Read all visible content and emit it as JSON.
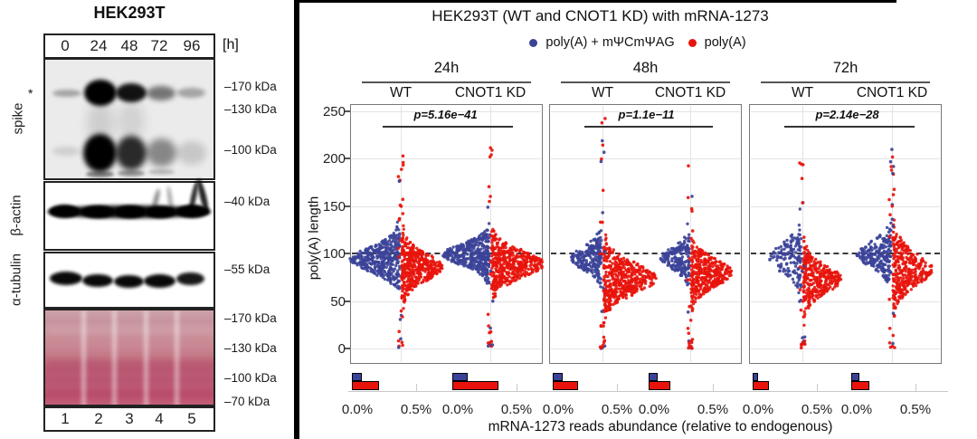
{
  "figure": {
    "left_blot": {
      "title": "HEK293T",
      "time_labels": [
        "0",
        "24",
        "48",
        "72",
        "96"
      ],
      "time_unit_label": "[h]",
      "asterisk": "*",
      "row_labels": [
        "spike",
        "β-actin",
        "α-tubulin"
      ],
      "marker_labels": {
        "spike": [
          "–170 kDa",
          "–130 kDa",
          "–100 kDa"
        ],
        "actin": [
          "–40 kDa"
        ],
        "tubulin": [
          "–55 kDa"
        ],
        "ponceau": [
          "–170 kDa",
          "–130 kDa",
          "–100 kDa",
          "–70 kDa"
        ]
      },
      "lane_numbers": [
        "1",
        "2",
        "3",
        "4",
        "5"
      ]
    },
    "chart": {
      "title": "HEK293T (WT and CNOT1 KD) with mRNA-1273",
      "legend": [
        {
          "label": "poly(A) + mΨCmΨAG",
          "color": "#3b4398"
        },
        {
          "label": "poly(A)",
          "color": "#e8140c"
        }
      ],
      "ylabel": "poly(A) length",
      "xlabel": "mRNA-1273 reads abundance (relative to endogenous)",
      "chart_data": {
        "type": "split-violin+bar",
        "y_axis": {
          "label": "poly(A) length",
          "ticks": [
            0,
            50,
            100,
            150,
            200,
            250
          ],
          "range": [
            0,
            250
          ],
          "reference_line": 100
        },
        "bar_axis": {
          "tick_labels": [
            "0.0%",
            "0.5%"
          ],
          "label": "mRNA-1273 reads abundance (relative to endogenous)",
          "unit": "% of endogenous reads"
        },
        "series": [
          {
            "name": "poly(A) + mΨCmΨAG",
            "color": "#3b4398",
            "side": "left"
          },
          {
            "name": "poly(A)",
            "color": "#e8140c",
            "side": "right"
          }
        ],
        "panels": [
          {
            "time": "24h",
            "p_value": "p=5.16e−41",
            "groups": [
              {
                "name": "WT",
                "blue": {
                  "peak": 94,
                  "sigma": 13,
                  "halfwidth": 54,
                  "n": 400
                },
                "red": {
                  "peak": 86,
                  "sigma": 14,
                  "halfwidth": 44,
                  "n": 420
                },
                "stem": {
                  "min": 0,
                  "max": 215
                },
                "abundance": {
                  "blue": 0.08,
                  "red": 0.21
                }
              },
              {
                "name": "CNOT1 KD",
                "blue": {
                  "peak": 99,
                  "sigma": 11,
                  "halfwidth": 50,
                  "n": 380
                },
                "red": {
                  "peak": 89,
                  "sigma": 14,
                  "halfwidth": 57,
                  "n": 450
                },
                "stem": {
                  "min": 0,
                  "max": 212
                },
                "abundance": {
                  "blue": 0.12,
                  "red": 0.36
                }
              }
            ]
          },
          {
            "time": "48h",
            "p_value": "p=1.1e−11",
            "groups": [
              {
                "name": "WT",
                "blue": {
                  "peak": 95,
                  "sigma": 12,
                  "halfwidth": 32,
                  "n": 210
                },
                "red": {
                  "peak": 74,
                  "sigma": 16,
                  "halfwidth": 57,
                  "n": 470
                },
                "stem": {
                  "min": 0,
                  "max": 243
                },
                "abundance": {
                  "blue": 0.08,
                  "red": 0.2
                }
              },
              {
                "name": "CNOT1 KD",
                "blue": {
                  "peak": 95,
                  "sigma": 11,
                  "halfwidth": 30,
                  "n": 190
                },
                "red": {
                  "peak": 80,
                  "sigma": 14,
                  "halfwidth": 44,
                  "n": 380
                },
                "stem": {
                  "min": 0,
                  "max": 215
                },
                "abundance": {
                  "blue": 0.07,
                  "red": 0.17
                }
              }
            ]
          },
          {
            "time": "72h",
            "p_value": "p=2.14e−28",
            "groups": [
              {
                "name": "WT",
                "blue": {
                  "peak": 94,
                  "sigma": 16,
                  "halfwidth": 34,
                  "n": 150
                },
                "red": {
                  "peak": 73,
                  "sigma": 14,
                  "halfwidth": 42,
                  "n": 330
                },
                "stem": {
                  "min": 0,
                  "max": 208
                },
                "abundance": {
                  "blue": 0.04,
                  "red": 0.13
                }
              },
              {
                "name": "CNOT1 KD",
                "blue": {
                  "peak": 99,
                  "sigma": 13,
                  "halfwidth": 36,
                  "n": 220
                },
                "red": {
                  "peak": 84,
                  "sigma": 17,
                  "halfwidth": 42,
                  "n": 340
                },
                "stem": {
                  "min": 0,
                  "max": 238
                },
                "abundance": {
                  "blue": 0.06,
                  "red": 0.14
                }
              }
            ]
          }
        ]
      }
    }
  }
}
